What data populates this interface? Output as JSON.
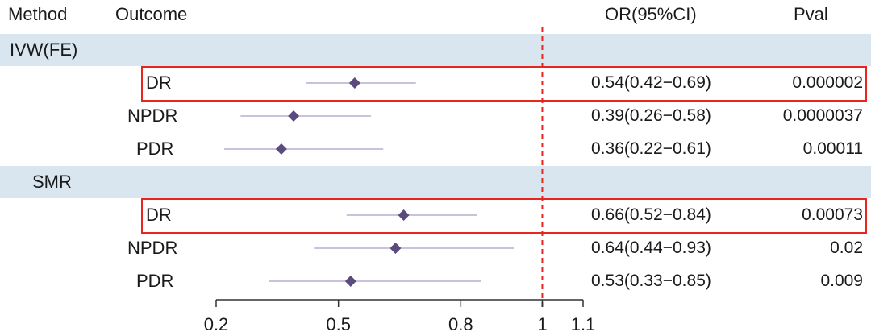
{
  "headers": {
    "method": "Method",
    "outcome": "Outcome",
    "or": "OR(95%CI)",
    "pval": "Pval"
  },
  "groups": [
    {
      "method": "IVW(FE)",
      "rows": [
        {
          "outcome": "DR",
          "or_text": "0.54(0.42−0.69)",
          "pval": "0.000002",
          "highlighted": true
        },
        {
          "outcome": "NPDR",
          "or_text": "0.39(0.26−0.58)",
          "pval": "0.0000037",
          "highlighted": false
        },
        {
          "outcome": "PDR",
          "or_text": "0.36(0.22−0.61)",
          "pval": "0.00011",
          "highlighted": false
        }
      ]
    },
    {
      "method": "SMR",
      "rows": [
        {
          "outcome": "DR",
          "or_text": "0.66(0.52−0.84)",
          "pval": "0.00073",
          "highlighted": true
        },
        {
          "outcome": "NPDR",
          "or_text": "0.64(0.44−0.93)",
          "pval": "0.02",
          "highlighted": false
        },
        {
          "outcome": "PDR",
          "or_text": "0.53(0.33−0.85)",
          "pval": "0.009",
          "highlighted": false
        }
      ]
    }
  ],
  "chart_data": {
    "type": "forest",
    "series": [
      {
        "method": "IVW(FE)",
        "outcome": "DR",
        "or": 0.54,
        "lo": 0.42,
        "hi": 0.69
      },
      {
        "method": "IVW(FE)",
        "outcome": "NPDR",
        "or": 0.39,
        "lo": 0.26,
        "hi": 0.58
      },
      {
        "method": "IVW(FE)",
        "outcome": "PDR",
        "or": 0.36,
        "lo": 0.22,
        "hi": 0.61
      },
      {
        "method": "SMR",
        "outcome": "DR",
        "or": 0.66,
        "lo": 0.52,
        "hi": 0.84
      },
      {
        "method": "SMR",
        "outcome": "NPDR",
        "or": 0.64,
        "lo": 0.44,
        "hi": 0.93
      },
      {
        "method": "SMR",
        "outcome": "PDR",
        "or": 0.53,
        "lo": 0.33,
        "hi": 0.85
      }
    ],
    "xticks": [
      0.2,
      0.5,
      0.8,
      1,
      1.1
    ],
    "xtick_labels": [
      "0.2",
      "0.5",
      "0.8",
      "1",
      "1.1"
    ],
    "xlim": [
      0.2,
      1.1
    ],
    "reference_line": 1,
    "colors": {
      "point": "#5b4a7e",
      "ci_line": "#b9aed0",
      "ref_line": "#e8261e",
      "band": "#d9e6f0",
      "highlight_box": "#e8261e",
      "axis": "#333333"
    }
  }
}
